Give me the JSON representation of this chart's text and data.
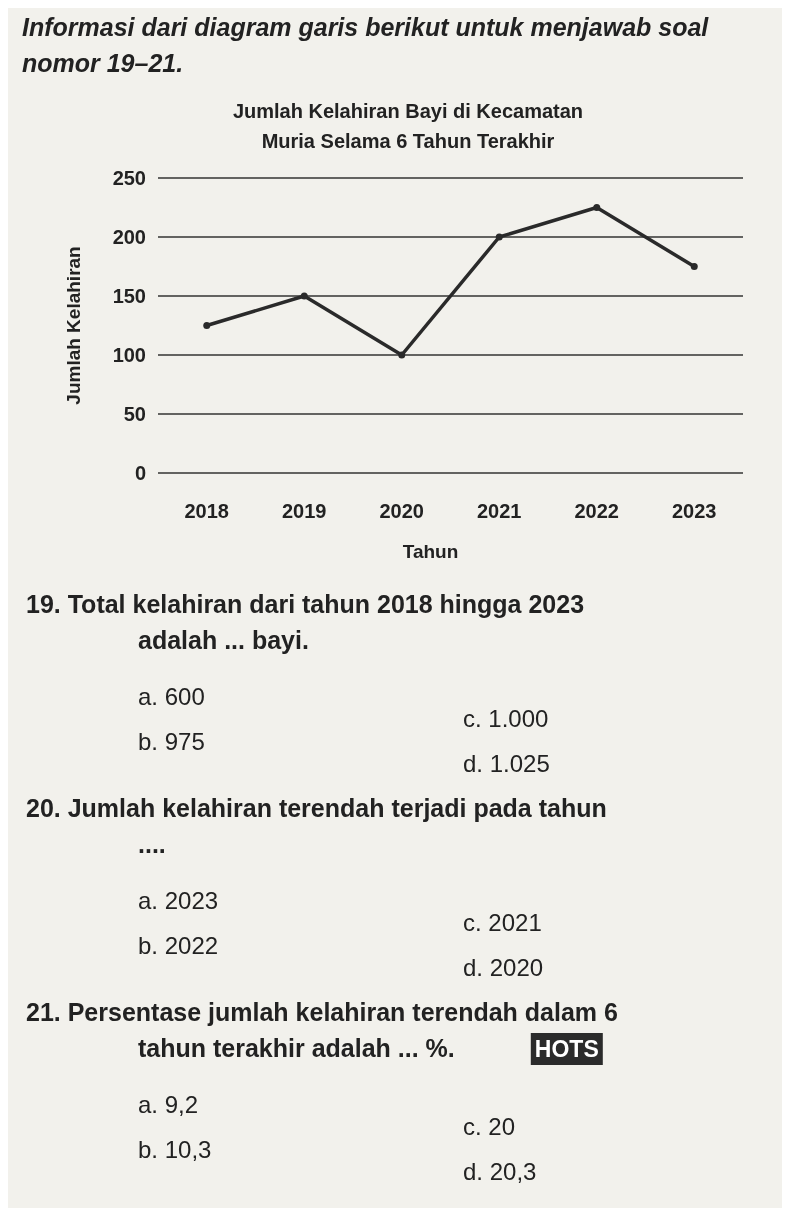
{
  "chart_data": {
    "type": "line",
    "title": "Jumlah Kelahiran Bayi di Kecamatan Muria Selama 6 Tahun Terakhir",
    "xlabel": "Tahun",
    "ylabel": "Jumlah Kelahiran",
    "categories": [
      "2018",
      "2019",
      "2020",
      "2021",
      "2022",
      "2023"
    ],
    "series": [
      {
        "color": "#2a2a2a",
        "values": [
          125,
          150,
          100,
          200,
          225,
          175
        ]
      }
    ],
    "ylim": [
      0,
      250
    ],
    "yticks": [
      0,
      50,
      100,
      150,
      200,
      250
    ],
    "grid": "y",
    "marker": "circle",
    "line_style": "solid",
    "annotations": [
      "Informasi dari diagram garis berikut untuk menjawab soal nomor 19–21.",
      "19. Total kelahiran dari tahun 2018 hingga 2023 adalah ... bayi.",
      "a. 600",
      "b. 975",
      "c. 1.000",
      "d. 1.025",
      "20. Jumlah kelahiran terendah terjadi pada tahun ....",
      "a. 2023",
      "b. 2022",
      "c. 2021",
      "d. 2020",
      "21. Persentase jumlah kelahiran terendah dalam 6 tahun terakhir adalah ... %.",
      "HOTS",
      "a. 9,2",
      "b. 10,3",
      "c. 20",
      "d. 20,3"
    ]
  }
}
